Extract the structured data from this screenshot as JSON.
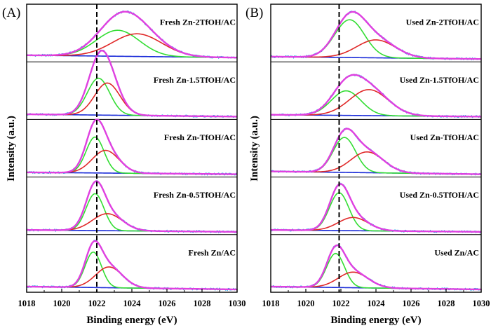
{
  "chart_data": [
    {
      "type": "line",
      "panel_label": "(A)",
      "xlabel": "Binding energy (eV)",
      "ylabel": "Intensity (a.u.)",
      "xlim": [
        1018,
        1030
      ],
      "xticks": [
        1018,
        1020,
        1022,
        1024,
        1026,
        1028,
        1030
      ],
      "reference_line_x": 1022.0,
      "colors": {
        "envelope": "#e040e0",
        "component1": "#33dd33",
        "component2": "#e02828",
        "background": "#1a2bd8",
        "raw": "#2aa7e8"
      },
      "traces": [
        {
          "label": "Fresh Zn-2TfOH/AC",
          "baseline": 0.08,
          "background_end": 0.03,
          "components": [
            {
              "center": 1023.2,
              "fwhm": 2.9,
              "height": 0.55
            },
            {
              "center": 1024.3,
              "fwhm": 3.3,
              "height": 0.48
            }
          ]
        },
        {
          "label": "Fresh Zn-1.5TfOH/AC",
          "baseline": 0.05,
          "background_end": 0.0,
          "components": [
            {
              "center": 1022.1,
              "fwhm": 1.5,
              "height": 0.78
            },
            {
              "center": 1022.6,
              "fwhm": 1.7,
              "height": 0.68
            }
          ]
        },
        {
          "label": "Fresh Zn-TfOH/AC",
          "baseline": 0.04,
          "background_end": 0.0,
          "components": [
            {
              "center": 1021.9,
              "fwhm": 1.2,
              "height": 0.76
            },
            {
              "center": 1022.5,
              "fwhm": 1.8,
              "height": 0.48
            }
          ]
        },
        {
          "label": "Fresh Zn-0.5TfOH/AC",
          "baseline": 0.04,
          "background_end": 0.0,
          "components": [
            {
              "center": 1021.9,
              "fwhm": 1.2,
              "height": 0.78
            },
            {
              "center": 1022.6,
              "fwhm": 2.0,
              "height": 0.36
            }
          ]
        },
        {
          "label": "Fresh Zn/AC",
          "baseline": 0.06,
          "background_end": 0.0,
          "components": [
            {
              "center": 1021.8,
              "fwhm": 1.1,
              "height": 0.75
            },
            {
              "center": 1022.7,
              "fwhm": 1.8,
              "height": 0.44
            }
          ]
        }
      ]
    },
    {
      "type": "line",
      "panel_label": "(B)",
      "xlabel": "Binding energy (eV)",
      "ylabel": "Intensity (a.u.)",
      "xlim": [
        1018,
        1030
      ],
      "xticks": [
        1018,
        1020,
        1022,
        1024,
        1026,
        1028,
        1030
      ],
      "reference_line_x": 1021.9,
      "colors": {
        "envelope": "#e040e0",
        "component1": "#33dd33",
        "component2": "#e02828",
        "background": "#1a2bd8",
        "raw": "#2aa7e8"
      },
      "traces": [
        {
          "label": "Used Zn-2TfOH/AC",
          "baseline": 0.05,
          "background_end": 0.0,
          "components": [
            {
              "center": 1022.5,
              "fwhm": 2.0,
              "height": 0.8
            },
            {
              "center": 1024.0,
              "fwhm": 2.6,
              "height": 0.38
            }
          ]
        },
        {
          "label": "Used Zn-1.5TfOH/AC",
          "baseline": 0.04,
          "background_end": 0.0,
          "components": [
            {
              "center": 1022.3,
              "fwhm": 2.0,
              "height": 0.52
            },
            {
              "center": 1023.6,
              "fwhm": 2.6,
              "height": 0.55
            }
          ]
        },
        {
          "label": "Used Zn-TfOH/AC",
          "baseline": 0.06,
          "background_end": 0.0,
          "components": [
            {
              "center": 1022.2,
              "fwhm": 1.5,
              "height": 0.74
            },
            {
              "center": 1023.5,
              "fwhm": 2.2,
              "height": 0.44
            }
          ]
        },
        {
          "label": "Used Zn-0.5TfOH/AC",
          "baseline": 0.04,
          "background_end": 0.0,
          "components": [
            {
              "center": 1021.9,
              "fwhm": 1.3,
              "height": 0.8
            },
            {
              "center": 1022.7,
              "fwhm": 2.0,
              "height": 0.28
            }
          ]
        },
        {
          "label": "Used Zn/AC",
          "baseline": 0.06,
          "background_end": 0.0,
          "components": [
            {
              "center": 1021.7,
              "fwhm": 1.2,
              "height": 0.72
            },
            {
              "center": 1022.7,
              "fwhm": 2.0,
              "height": 0.33
            }
          ]
        }
      ]
    }
  ]
}
